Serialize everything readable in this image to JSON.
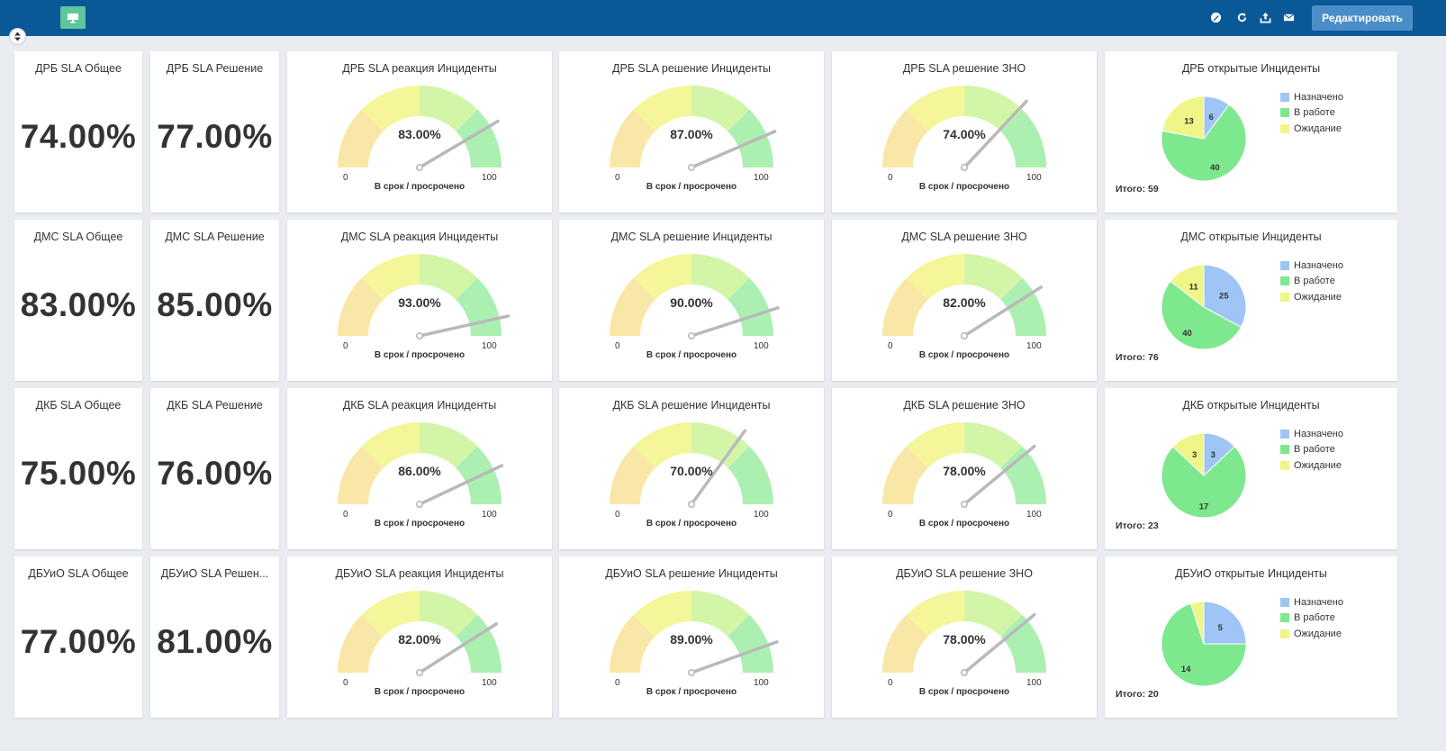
{
  "header": {
    "edit_label": "Редактировать",
    "icons": [
      "monitor-icon",
      "pencil-icon",
      "refresh-icon",
      "upload-icon",
      "mail-icon"
    ],
    "colors": {
      "bar": "#0b5896",
      "monitor_button": "#5ec69a",
      "edit_button": "#4b8dc8"
    }
  },
  "gauge_common": {
    "min_label": "0",
    "max_label": "100",
    "caption": "В срок / просрочено",
    "min": 0,
    "max": 100,
    "band_colors": [
      "#f9e7a8",
      "#f5f59a",
      "#d3f5a8",
      "#abf0b1"
    ]
  },
  "pie_common": {
    "legend": [
      {
        "label": "Назначено",
        "color": "#9ec5f5"
      },
      {
        "label": "В работе",
        "color": "#7ee88e"
      },
      {
        "label": "Ожидание",
        "color": "#f0f587"
      }
    ]
  },
  "rows": [
    {
      "overall_title": "ДРБ SLA Общее",
      "overall_value": "74.00%",
      "resolve_title": "ДРБ SLA Решение",
      "resolve_value": "77.00%",
      "gauges": [
        {
          "title": "ДРБ SLA реакция Инциденты",
          "label": "83.00%",
          "value": 83
        },
        {
          "title": "ДРБ SLA решение Инциденты",
          "label": "87.00%",
          "value": 87
        },
        {
          "title": "ДРБ SLA решение ЗНО",
          "label": "74.00%",
          "value": 74
        }
      ],
      "pie": {
        "title": "ДРБ открытые Инциденты",
        "total": "Итого: 59",
        "values": [
          6,
          40,
          13
        ]
      }
    },
    {
      "overall_title": "ДМС SLA Общее",
      "overall_value": "83.00%",
      "resolve_title": "ДМС SLA Решение",
      "resolve_value": "85.00%",
      "gauges": [
        {
          "title": "ДМС SLA реакция Инциденты",
          "label": "93.00%",
          "value": 93
        },
        {
          "title": "ДМС SLA решение Инциденты",
          "label": "90.00%",
          "value": 90
        },
        {
          "title": "ДМС SLA решение ЗНО",
          "label": "82.00%",
          "value": 82
        }
      ],
      "pie": {
        "title": "ДМС открытые Инциденты",
        "total": "Итого: 76",
        "values": [
          25,
          40,
          11
        ]
      }
    },
    {
      "overall_title": "ДКБ SLA Общее",
      "overall_value": "75.00%",
      "resolve_title": "ДКБ SLA Решение",
      "resolve_value": "76.00%",
      "gauges": [
        {
          "title": "ДКБ SLA реакция Инциденты",
          "label": "86.00%",
          "value": 86
        },
        {
          "title": "ДКБ SLA решение Инциденты",
          "label": "70.00%",
          "value": 70
        },
        {
          "title": "ДКБ SLA решение ЗНО",
          "label": "78.00%",
          "value": 78
        }
      ],
      "pie": {
        "title": "ДКБ открытые Инциденты",
        "total": "Итого: 23",
        "values": [
          3,
          17,
          3
        ]
      }
    },
    {
      "overall_title": "ДБУиО SLA Общее",
      "overall_value": "77.00%",
      "resolve_title": "ДБУиО SLA Решен...",
      "resolve_value": "81.00%",
      "gauges": [
        {
          "title": "ДБУиО SLA реакция Инциденты",
          "label": "82.00%",
          "value": 82
        },
        {
          "title": "ДБУиО SLA решение Инциденты",
          "label": "89.00%",
          "value": 89
        },
        {
          "title": "ДБУиО SLA решение ЗНО",
          "label": "78.00%",
          "value": 78
        }
      ],
      "pie": {
        "title": "ДБУиО открытые Инциденты",
        "total": "Итого: 20",
        "values": [
          5,
          14,
          1
        ]
      }
    }
  ]
}
